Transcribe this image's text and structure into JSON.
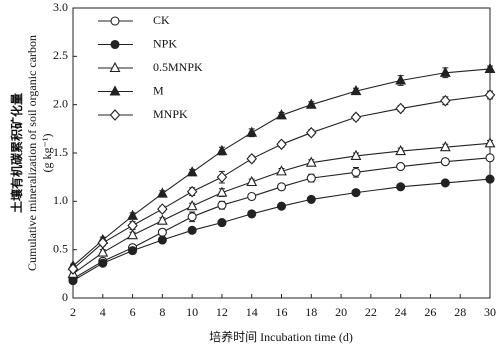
{
  "chart_data": {
    "type": "line",
    "x_label": "培养时间 Incubation time (d)",
    "y_label": [
      "土壤有机碳累积矿化量",
      "Cumulative mineralization of soil organic carbon",
      "(g kg⁻¹)"
    ],
    "x": [
      2,
      4,
      6,
      8,
      10,
      12,
      14,
      16,
      18,
      21,
      24,
      27,
      30
    ],
    "xlim": [
      2,
      30
    ],
    "xticks": [
      2,
      4,
      6,
      8,
      10,
      12,
      14,
      16,
      18,
      20,
      22,
      24,
      26,
      28,
      30
    ],
    "ylim": [
      0,
      3
    ],
    "yticks": [
      0,
      0.5,
      {
        "value": 1,
        "label": "1.0"
      },
      1.5,
      {
        "value": 2,
        "label": "2.0"
      },
      2.5,
      {
        "value": 3,
        "label": "3.0"
      }
    ],
    "legend": "upper left",
    "series": [
      {
        "name": "CK",
        "color": "#222222",
        "marker": "circle",
        "filled": false,
        "values": [
          0.2,
          0.38,
          0.52,
          0.68,
          0.84,
          0.96,
          1.05,
          1.15,
          1.24,
          1.3,
          1.36,
          1.41,
          1.45
        ],
        "errors": [
          0.02,
          0.02,
          0.03,
          0.03,
          0.05,
          0.04,
          0.03,
          0.03,
          0.04,
          0.05,
          0.03,
          0.03,
          0.03
        ]
      },
      {
        "name": "NPK",
        "color": "#222222",
        "marker": "circle",
        "filled": true,
        "values": [
          0.18,
          0.36,
          0.49,
          0.6,
          0.7,
          0.78,
          0.87,
          0.95,
          1.02,
          1.09,
          1.15,
          1.19,
          1.23
        ],
        "errors": [
          0.02,
          0.02,
          0.02,
          0.02,
          0.02,
          0.02,
          0.02,
          0.02,
          0.02,
          0.02,
          0.02,
          0.02,
          0.02
        ]
      },
      {
        "name": "0.5MNPK",
        "color": "#222222",
        "marker": "triangle",
        "filled": false,
        "values": [
          0.25,
          0.47,
          0.65,
          0.8,
          0.95,
          1.09,
          1.2,
          1.31,
          1.4,
          1.47,
          1.52,
          1.56,
          1.6
        ],
        "errors": [
          0.02,
          0.03,
          0.03,
          0.03,
          0.03,
          0.04,
          0.03,
          0.03,
          0.03,
          0.03,
          0.03,
          0.03,
          0.03
        ]
      },
      {
        "name": "M",
        "color": "#222222",
        "marker": "triangle",
        "filled": true,
        "values": [
          0.33,
          0.6,
          0.85,
          1.08,
          1.3,
          1.52,
          1.71,
          1.89,
          2.0,
          2.14,
          2.25,
          2.33,
          2.37
        ],
        "errors": [
          0.02,
          0.03,
          0.03,
          0.03,
          0.03,
          0.04,
          0.04,
          0.03,
          0.03,
          0.03,
          0.05,
          0.05,
          0.03
        ]
      },
      {
        "name": "MNPK",
        "color": "#222222",
        "marker": "diamond",
        "filled": false,
        "values": [
          0.3,
          0.57,
          0.75,
          0.92,
          1.1,
          1.25,
          1.44,
          1.59,
          1.71,
          1.87,
          1.96,
          2.04,
          2.1
        ],
        "errors": [
          0.02,
          0.03,
          0.04,
          0.03,
          0.04,
          0.06,
          0.03,
          0.03,
          0.03,
          0.03,
          0.03,
          0.04,
          0.04
        ]
      }
    ]
  }
}
